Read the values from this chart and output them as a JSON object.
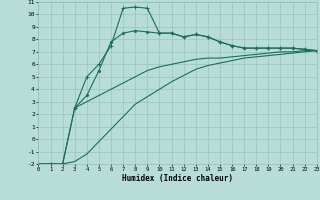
{
  "xlabel": "Humidex (Indice chaleur)",
  "xlim": [
    0,
    23
  ],
  "ylim": [
    -2,
    11
  ],
  "xticks": [
    0,
    1,
    2,
    3,
    4,
    5,
    6,
    7,
    8,
    9,
    10,
    11,
    12,
    13,
    14,
    15,
    16,
    17,
    18,
    19,
    20,
    21,
    22,
    23
  ],
  "yticks": [
    -2,
    -1,
    0,
    1,
    2,
    3,
    4,
    5,
    6,
    7,
    8,
    9,
    10,
    11
  ],
  "background_color": "#b8ddd8",
  "grid_color": "#90c0b8",
  "line_color": "#1a6e5e",
  "curve1_x": [
    0,
    1,
    2,
    3,
    4,
    5,
    6,
    7,
    8,
    9,
    10,
    11,
    12,
    13,
    14,
    15,
    16,
    17,
    18,
    19,
    20,
    21,
    22,
    23
  ],
  "curve1_y": [
    -2,
    -2,
    -2,
    2.5,
    5,
    6,
    7.5,
    10.5,
    10.6,
    10.5,
    8.5,
    8.5,
    8.2,
    8.4,
    8.2,
    7.8,
    7.5,
    7.3,
    7.3,
    7.3,
    7.3,
    7.3,
    7.2,
    7.1
  ],
  "curve2_x": [
    3,
    4,
    5,
    6,
    7,
    8,
    9,
    10,
    11,
    12,
    13,
    14,
    15,
    16,
    17,
    18,
    19,
    20,
    21,
    22,
    23
  ],
  "curve2_y": [
    2.5,
    3.5,
    5.5,
    7.8,
    8.5,
    8.7,
    8.6,
    8.5,
    8.5,
    8.2,
    8.4,
    8.2,
    7.8,
    7.5,
    7.3,
    7.3,
    7.3,
    7.3,
    7.3,
    7.2,
    7.1
  ],
  "curve3_x": [
    0,
    1,
    2,
    3,
    4,
    5,
    6,
    7,
    8,
    9,
    10,
    11,
    12,
    13,
    14,
    15,
    16,
    17,
    18,
    19,
    20,
    21,
    22,
    23
  ],
  "curve3_y": [
    -2,
    -2,
    -2,
    2.5,
    3.0,
    3.5,
    4.0,
    4.5,
    5.0,
    5.5,
    5.8,
    6.0,
    6.2,
    6.4,
    6.5,
    6.5,
    6.6,
    6.7,
    6.8,
    6.9,
    7.0,
    7.0,
    7.1,
    7.1
  ],
  "curve4_x": [
    0,
    1,
    2,
    3,
    4,
    5,
    6,
    7,
    8,
    9,
    10,
    11,
    12,
    13,
    14,
    15,
    16,
    17,
    18,
    19,
    20,
    21,
    22,
    23
  ],
  "curve4_y": [
    -2,
    -2,
    -2,
    -1.8,
    -1.2,
    -0.2,
    0.8,
    1.8,
    2.8,
    3.4,
    4.0,
    4.6,
    5.1,
    5.6,
    5.9,
    6.1,
    6.3,
    6.5,
    6.6,
    6.7,
    6.8,
    6.9,
    7.0,
    7.1
  ]
}
